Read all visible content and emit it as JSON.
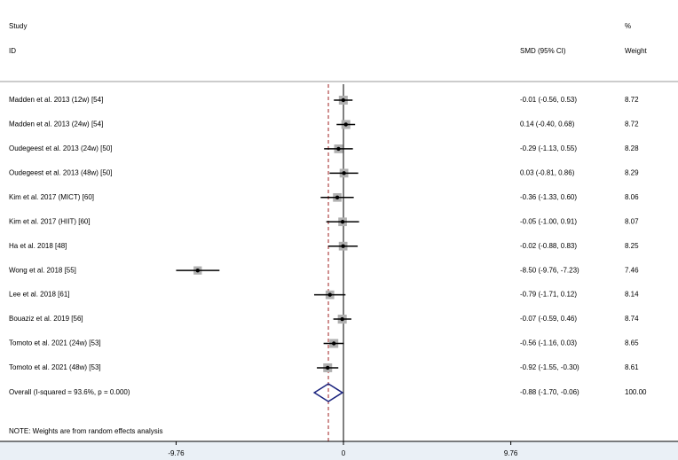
{
  "chart_data": {
    "type": "forest",
    "header": {
      "study": "Study",
      "id": "ID",
      "effect": "SMD (95% CI)",
      "pct": "%",
      "weight": "Weight"
    },
    "studies": [
      "Madden et al. 2013 (12w) [54]",
      "Madden et al. 2013 (24w) [54]",
      "Oudegeest et al. 2013 (24w) [50]",
      "Oudegeest et al. 2013 (48w) [50]",
      "Kim et al. 2017 (MICT) [60]",
      "Kim et al. 2017 (HIIT) [60]",
      "Ha et al. 2018 [48]",
      "Wong et al. 2018 [55]",
      "Lee et al. 2018 [61]",
      "Bouaziz et al. 2019 [56]",
      "Tomoto et al. 2021 (24w) [53]",
      "Tomoto et al. 2021 (48w) [53]"
    ],
    "values": [
      -0.01,
      0.14,
      -0.29,
      0.03,
      -0.36,
      -0.05,
      -0.02,
      -8.5,
      -0.79,
      -0.07,
      -0.56,
      -0.92
    ],
    "lower": [
      -0.56,
      -0.4,
      -1.13,
      -0.81,
      -1.33,
      -1.0,
      -0.88,
      -9.76,
      -1.71,
      -0.59,
      -1.16,
      -1.55
    ],
    "upper": [
      0.53,
      0.68,
      0.55,
      0.86,
      0.6,
      0.91,
      0.83,
      -7.23,
      0.12,
      0.46,
      0.03,
      -0.3
    ],
    "value_labels": [
      "-0.01 (-0.56, 0.53)",
      "0.14 (-0.40, 0.68)",
      "-0.29 (-1.13, 0.55)",
      "0.03 (-0.81, 0.86)",
      "-0.36 (-1.33, 0.60)",
      "-0.05 (-1.00, 0.91)",
      "-0.02 (-0.88, 0.83)",
      "-8.50 (-9.76, -7.23)",
      "-0.79 (-1.71, 0.12)",
      "-0.07 (-0.59, 0.46)",
      "-0.56 (-1.16, 0.03)",
      "-0.92 (-1.55, -0.30)"
    ],
    "weights": [
      8.72,
      8.72,
      8.28,
      8.29,
      8.06,
      8.07,
      8.25,
      7.46,
      8.14,
      8.74,
      8.65,
      8.61
    ],
    "overall": {
      "label": "Overall  (I-squared = 93.6%, p = 0.000)",
      "value": -0.88,
      "lower": -1.7,
      "upper": -0.06,
      "value_label": "-0.88 (-1.70, -0.06)",
      "weight": {
        "value": 100,
        "label": "100.00"
      }
    },
    "note": "NOTE: Weights are from random effects analysis",
    "xlim": [
      -20.03,
      19.51
    ],
    "xticks": [
      -9.76,
      0,
      9.76
    ],
    "box_color": "#b0b0b0",
    "ci_color": "#000000",
    "diamond_color": "#1a237e",
    "overall_line_color": "#a02020"
  }
}
